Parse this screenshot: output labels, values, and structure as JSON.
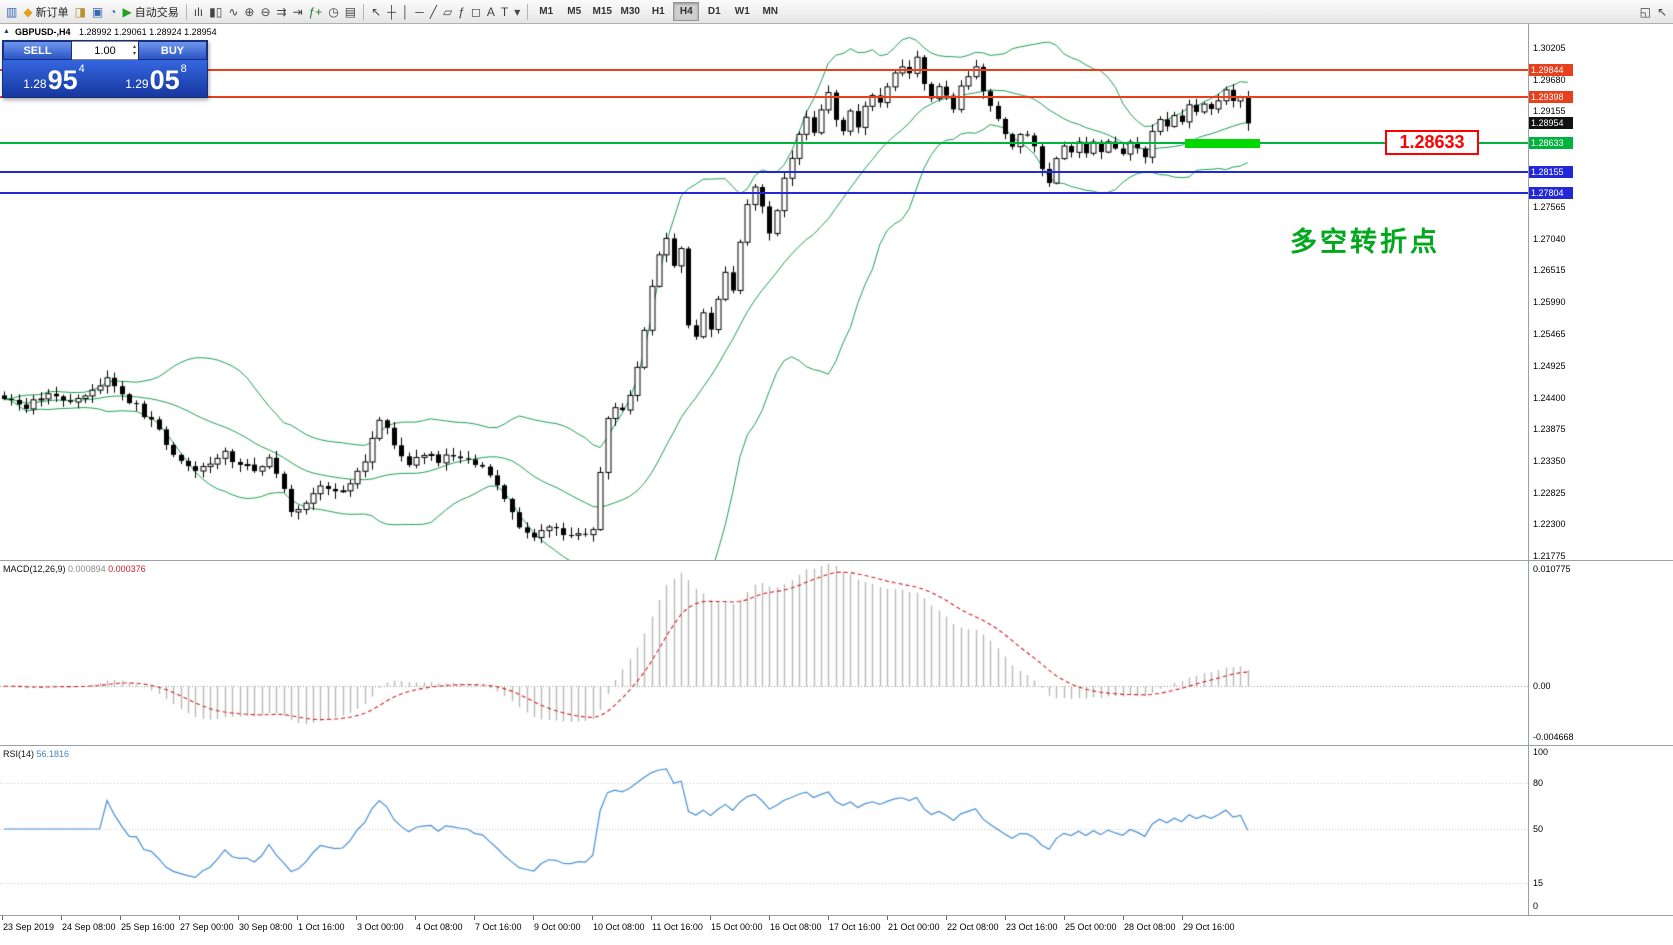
{
  "toolbar": {
    "items": [
      {
        "name": "new-chart",
        "glyph": "▥",
        "color": "#3a68b0"
      },
      {
        "name": "new-order",
        "glyph": "◆",
        "color": "#e0a020",
        "label": "新订单"
      },
      {
        "name": "market-watch",
        "glyph": "◨",
        "color": "#b89030"
      },
      {
        "name": "data-window",
        "glyph": "▣",
        "color": "#3a68b0"
      },
      {
        "name": "navigator",
        "glyph": "◔",
        "color": "#3a68b0"
      },
      {
        "name": "autotrade",
        "glyph": "▶",
        "color": "#22a022",
        "label": "自动交易"
      },
      {
        "sep": true
      },
      {
        "name": "bar-chart",
        "glyph": "ılı",
        "color": "#444444"
      },
      {
        "name": "candle-chart",
        "glyph": "▮▯",
        "color": "#444444"
      },
      {
        "name": "line-chart",
        "glyph": "∿",
        "color": "#444444"
      },
      {
        "name": "zoom-in",
        "glyph": "⊕",
        "color": "#444444"
      },
      {
        "name": "zoom-out",
        "glyph": "⊖",
        "color": "#444444"
      },
      {
        "name": "auto-scroll",
        "glyph": "⇉",
        "color": "#444444"
      },
      {
        "name": "chart-shift",
        "glyph": "⇥",
        "color": "#444444"
      },
      {
        "name": "indicators",
        "glyph": "ƒ+",
        "color": "#228022"
      },
      {
        "name": "periods",
        "glyph": "◷",
        "color": "#444444"
      },
      {
        "name": "templates",
        "glyph": "▤",
        "color": "#444444"
      },
      {
        "sep": true
      },
      {
        "name": "cursor",
        "glyph": "↖",
        "color": "#444444"
      },
      {
        "name": "crosshair",
        "glyph": "┼",
        "color": "#444444"
      },
      {
        "name": "vertical-line",
        "glyph": "│",
        "color": "#444444"
      },
      {
        "name": "horizontal-line",
        "glyph": "─",
        "color": "#444444"
      },
      {
        "name": "trendline",
        "glyph": "╱",
        "color": "#444444"
      },
      {
        "name": "channel",
        "glyph": "▱",
        "color": "#444444"
      },
      {
        "name": "fibonacci",
        "glyph": "ƒ",
        "color": "#444444"
      },
      {
        "name": "shapes",
        "glyph": "◻",
        "color": "#444444"
      },
      {
        "name": "text",
        "glyph": "A",
        "color": "#444444"
      },
      {
        "name": "text-label",
        "glyph": "T",
        "color": "#444444"
      },
      {
        "name": "arrows",
        "glyph": "▾",
        "color": "#444444"
      }
    ],
    "timeframes": [
      "M1",
      "M5",
      "M15",
      "M30",
      "H1",
      "H4",
      "D1",
      "W1",
      "MN"
    ],
    "active_timeframe": "H4",
    "right_icons": [
      {
        "name": "layout",
        "glyph": "◱",
        "color": "#444444"
      },
      {
        "name": "pointer",
        "glyph": "↖",
        "color": "#444444"
      }
    ]
  },
  "chart": {
    "symbol_header": "GBPUSD-,H4",
    "ohlc_text": "1.28992 1.29061 1.28924 1.28954",
    "collapse_arrow": "▲",
    "trade_panel": {
      "sell_label": "SELL",
      "buy_label": "BUY",
      "volume": "1.00",
      "spinner_up": "▴",
      "spinner_down": "▾",
      "sell_price": {
        "prefix": "1.28",
        "pips": "95",
        "frac": "4"
      },
      "buy_price": {
        "prefix": "1.29",
        "pips": "05",
        "frac": "8"
      }
    },
    "hlines": [
      {
        "price": 1.29844,
        "label": "1.29844",
        "color": "#e8401c"
      },
      {
        "price": 1.29398,
        "label": "1.29398",
        "color": "#e8401c"
      },
      {
        "price": 1.28633,
        "label": "1.28633",
        "color": "#00b33c"
      },
      {
        "price": 1.28155,
        "label": "1.28155",
        "color": "#2228d8"
      },
      {
        "price": 1.27804,
        "label": "1.27804",
        "color": "#2228d8"
      }
    ],
    "bid_tag": {
      "price": 1.28954,
      "label": "1.28954",
      "color": "#111111"
    },
    "callout": {
      "text": "1.28633",
      "price": 1.28633
    },
    "annotation": {
      "text": "多空转折点"
    },
    "highlight_rect": {
      "price": 1.28633,
      "color": "#00d800"
    },
    "scale_ticks": [
      {
        "v": 1.30205,
        "t": "1.30205"
      },
      {
        "v": 1.2968,
        "t": "1.29680"
      },
      {
        "v": 1.29155,
        "t": "1.29155"
      },
      {
        "v": 1.27565,
        "t": "1.27565"
      },
      {
        "v": 1.2704,
        "t": "1.27040"
      },
      {
        "v": 1.26515,
        "t": "1.26515"
      },
      {
        "v": 1.2599,
        "t": "1.25990"
      },
      {
        "v": 1.25465,
        "t": "1.25465"
      },
      {
        "v": 1.24925,
        "t": "1.24925"
      },
      {
        "v": 1.244,
        "t": "1.24400"
      },
      {
        "v": 1.23875,
        "t": "1.23875"
      },
      {
        "v": 1.2335,
        "t": "1.23350"
      },
      {
        "v": 1.22825,
        "t": "1.22825"
      },
      {
        "v": 1.223,
        "t": "1.22300"
      },
      {
        "v": 1.21775,
        "t": "1.21775"
      }
    ]
  },
  "macd_panel": {
    "label": "MACD(12,26,9)",
    "value_main": "0.000894",
    "value_signal": "0.000376",
    "scale": [
      {
        "v": 0.010775,
        "t": "0.010775"
      },
      {
        "v": 0,
        "t": "0.00"
      },
      {
        "v": -0.004668,
        "t": "-0.004668"
      }
    ]
  },
  "rsi_panel": {
    "label": "RSI(14)",
    "value": "56.1816",
    "scale": [
      {
        "v": 100,
        "t": "100"
      },
      {
        "v": 80,
        "t": "80"
      },
      {
        "v": 50,
        "t": "50"
      },
      {
        "v": 15,
        "t": "15"
      },
      {
        "v": 0,
        "t": "0"
      }
    ],
    "levels": [
      80,
      50,
      15
    ]
  },
  "time_axis": [
    "23 Sep 2019",
    "24 Sep 08:00",
    "25 Sep 16:00",
    "27 Sep 00:00",
    "30 Sep 08:00",
    "1 Oct 16:00",
    "3 Oct 00:00",
    "4 Oct 08:00",
    "7 Oct 16:00",
    "9 Oct 00:00",
    "10 Oct 08:00",
    "11 Oct 16:00",
    "15 Oct 00:00",
    "16 Oct 08:00",
    "17 Oct 16:00",
    "21 Oct 00:00",
    "22 Oct 08:00",
    "23 Oct 16:00",
    "25 Oct 00:00",
    "28 Oct 08:00",
    "29 Oct 16:00"
  ],
  "chart_data": {
    "type": "candlestick",
    "symbol": "GBPUSD-",
    "timeframe": "H4",
    "price_range_visible": {
      "min": 1.21775,
      "max": 1.30205
    },
    "last_candle": {
      "open": 1.28992,
      "high": 1.29061,
      "low": 1.28924,
      "close": 1.28954
    },
    "num_candles": 170,
    "close_waypoints": [
      [
        0,
        1.244
      ],
      [
        3,
        1.2425
      ],
      [
        6,
        1.2446
      ],
      [
        9,
        1.243
      ],
      [
        12,
        1.2456
      ],
      [
        14,
        1.2472
      ],
      [
        16,
        1.2442
      ],
      [
        18,
        1.2426
      ],
      [
        20,
        1.24
      ],
      [
        22,
        1.2366
      ],
      [
        24,
        1.2332
      ],
      [
        26,
        1.2316
      ],
      [
        28,
        1.233
      ],
      [
        30,
        1.2346
      ],
      [
        32,
        1.233
      ],
      [
        34,
        1.2318
      ],
      [
        36,
        1.2336
      ],
      [
        38,
        1.2292
      ],
      [
        39,
        1.2246
      ],
      [
        41,
        1.227
      ],
      [
        43,
        1.2292
      ],
      [
        45,
        1.2282
      ],
      [
        47,
        1.2298
      ],
      [
        49,
        1.233
      ],
      [
        51,
        1.2408
      ],
      [
        53,
        1.2362
      ],
      [
        55,
        1.233
      ],
      [
        57,
        1.2346
      ],
      [
        59,
        1.2336
      ],
      [
        61,
        1.2348
      ],
      [
        63,
        1.234
      ],
      [
        65,
        1.2326
      ],
      [
        67,
        1.23
      ],
      [
        69,
        1.2252
      ],
      [
        70,
        1.222
      ],
      [
        72,
        1.2212
      ],
      [
        74,
        1.2228
      ],
      [
        76,
        1.2216
      ],
      [
        78,
        1.221
      ],
      [
        80,
        1.2226
      ],
      [
        82,
        1.2406
      ],
      [
        83,
        1.2426
      ],
      [
        84,
        1.2416
      ],
      [
        85,
        1.2446
      ],
      [
        86,
        1.2492
      ],
      [
        87,
        1.2552
      ],
      [
        88,
        1.2622
      ],
      [
        89,
        1.2676
      ],
      [
        90,
        1.2706
      ],
      [
        91,
        1.2662
      ],
      [
        92,
        1.2686
      ],
      [
        93,
        1.2562
      ],
      [
        94,
        1.2536
      ],
      [
        95,
        1.2582
      ],
      [
        96,
        1.2556
      ],
      [
        97,
        1.2606
      ],
      [
        98,
        1.265
      ],
      [
        99,
        1.2622
      ],
      [
        100,
        1.2702
      ],
      [
        101,
        1.2756
      ],
      [
        102,
        1.279
      ],
      [
        103,
        1.2762
      ],
      [
        104,
        1.2716
      ],
      [
        105,
        1.2752
      ],
      [
        106,
        1.2802
      ],
      [
        107,
        1.2842
      ],
      [
        108,
        1.2872
      ],
      [
        109,
        1.2902
      ],
      [
        110,
        1.2882
      ],
      [
        111,
        1.2922
      ],
      [
        112,
        1.2942
      ],
      [
        113,
        1.2906
      ],
      [
        114,
        1.2882
      ],
      [
        115,
        1.2912
      ],
      [
        116,
        1.2892
      ],
      [
        117,
        1.2926
      ],
      [
        118,
        1.2946
      ],
      [
        119,
        1.2932
      ],
      [
        120,
        1.2956
      ],
      [
        121,
        1.2976
      ],
      [
        122,
        1.2992
      ],
      [
        123,
        1.2982
      ],
      [
        124,
        1.3
      ],
      [
        125,
        1.2962
      ],
      [
        126,
        1.2942
      ],
      [
        127,
        1.2958
      ],
      [
        128,
        1.2942
      ],
      [
        129,
        1.2922
      ],
      [
        130,
        1.2952
      ],
      [
        131,
        1.2976
      ],
      [
        132,
        1.299
      ],
      [
        133,
        1.2952
      ],
      [
        134,
        1.2922
      ],
      [
        135,
        1.2898
      ],
      [
        136,
        1.2878
      ],
      [
        137,
        1.2858
      ],
      [
        138,
        1.2882
      ],
      [
        139,
        1.2872
      ],
      [
        140,
        1.2852
      ],
      [
        141,
        1.2822
      ],
      [
        142,
        1.2798
      ],
      [
        143,
        1.2838
      ],
      [
        144,
        1.2856
      ],
      [
        145,
        1.2842
      ],
      [
        146,
        1.2862
      ],
      [
        147,
        1.285
      ],
      [
        148,
        1.286
      ],
      [
        149,
        1.2852
      ],
      [
        150,
        1.2868
      ],
      [
        151,
        1.2858
      ],
      [
        152,
        1.285
      ],
      [
        153,
        1.2866
      ],
      [
        154,
        1.2856
      ],
      [
        155,
        1.2844
      ],
      [
        156,
        1.2886
      ],
      [
        157,
        1.2902
      ],
      [
        158,
        1.2892
      ],
      [
        159,
        1.2912
      ],
      [
        160,
        1.2902
      ],
      [
        161,
        1.2922
      ],
      [
        162,
        1.2912
      ],
      [
        163,
        1.2932
      ],
      [
        164,
        1.2918
      ],
      [
        165,
        1.2936
      ],
      [
        166,
        1.2948
      ],
      [
        167,
        1.2928
      ],
      [
        168,
        1.294
      ],
      [
        169,
        1.28954
      ]
    ],
    "indicators": {
      "bollinger": {
        "period": 20,
        "deviation": 2,
        "color": "#1f9e50"
      },
      "macd": {
        "fast": 12,
        "slow": 26,
        "signal": 9,
        "value": 0.000894,
        "signal_value": 0.000376
      },
      "rsi": {
        "period": 14,
        "value": 56.1816
      }
    },
    "levels": [
      1.29844,
      1.29398,
      1.28633,
      1.28155,
      1.27804
    ]
  }
}
